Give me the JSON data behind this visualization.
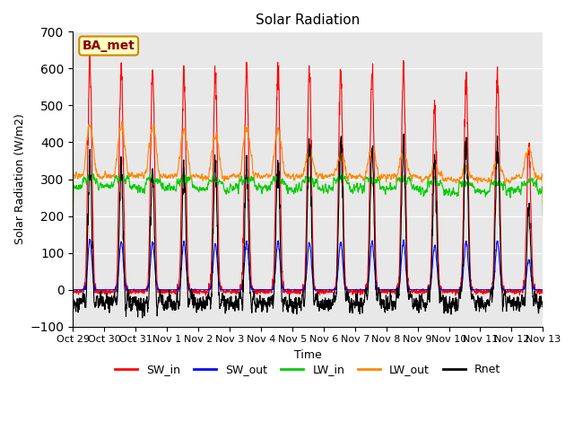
{
  "title": "Solar Radiation",
  "xlabel": "Time",
  "ylabel": "Solar Radiation (W/m2)",
  "annotation": "BA_met",
  "ylim": [
    -100,
    700
  ],
  "yticks": [
    -100,
    0,
    100,
    200,
    300,
    400,
    500,
    600,
    700
  ],
  "background_color": "#e8e8e8",
  "legend": [
    "SW_in",
    "SW_out",
    "LW_in",
    "LW_out",
    "Rnet"
  ],
  "line_colors": [
    "#ff0000",
    "#0000ff",
    "#00cc00",
    "#ff8800",
    "#000000"
  ],
  "n_days": 15,
  "x_tick_labels": [
    "Oct 29",
    "Oct 30",
    "Oct 31",
    "Nov 1",
    "Nov 2",
    "Nov 3",
    "Nov 4",
    "Nov 5",
    "Nov 6",
    "Nov 7",
    "Nov 8",
    "Nov 9",
    "Nov 10",
    "Nov 11",
    "Nov 12",
    "Nov 13"
  ],
  "title_fontsize": 11,
  "label_fontsize": 9,
  "tick_fontsize": 8,
  "annotation_fontsize": 10,
  "day_peaks_SW": [
    615,
    600,
    595,
    595,
    580,
    605,
    600,
    592,
    600,
    600,
    600,
    490,
    575,
    590,
    390
  ],
  "day_peaks_SW_out": [
    135,
    130,
    128,
    128,
    125,
    130,
    130,
    128,
    128,
    130,
    130,
    120,
    130,
    130,
    80
  ],
  "day_peaks_LW_out": [
    445,
    445,
    440,
    430,
    420,
    440,
    430,
    370,
    365,
    380,
    375,
    340,
    330,
    345,
    385
  ],
  "night_LW_in_base": [
    280,
    278,
    275,
    275,
    272,
    278,
    275,
    275,
    275,
    275,
    275,
    268,
    265,
    265,
    270
  ],
  "night_LW_out_base": [
    310,
    310,
    308,
    308,
    305,
    310,
    308,
    308,
    308,
    308,
    308,
    300,
    298,
    298,
    305
  ]
}
